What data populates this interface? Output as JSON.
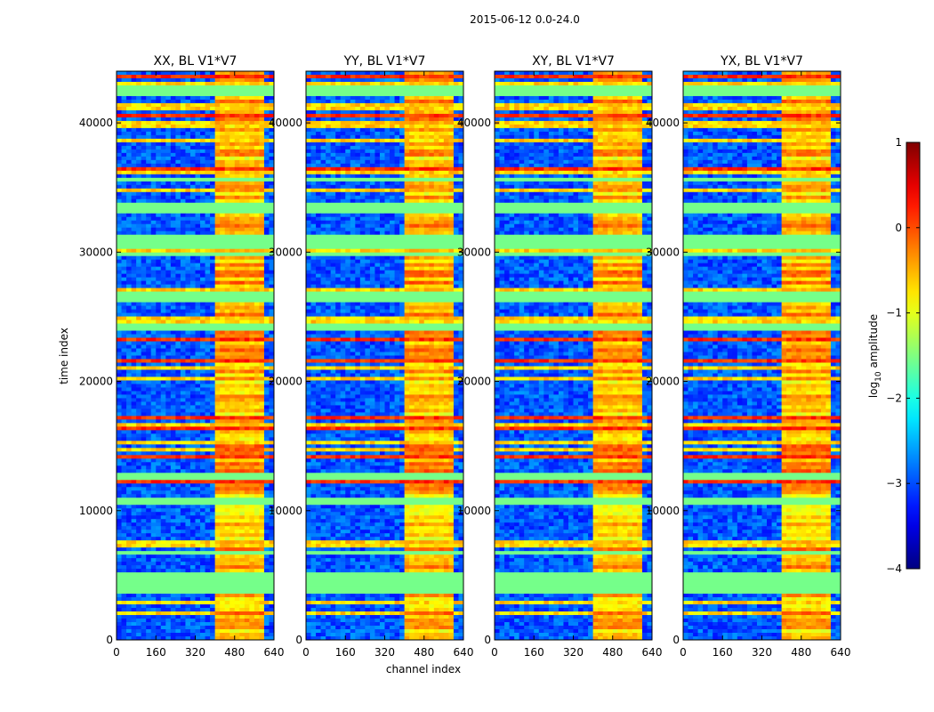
{
  "chart_data": {
    "type": "heatmap",
    "suptitle": "2015-06-12 0.0-24.0",
    "xlabel": "channel index",
    "ylabel": "time index",
    "xlim": [
      0,
      640
    ],
    "ylim": [
      0,
      44000
    ],
    "xticks": [
      "0",
      "160",
      "320",
      "480",
      "640"
    ],
    "yticks": [
      "0",
      "10000",
      "20000",
      "30000",
      "40000"
    ],
    "colormap": "jet",
    "panels": [
      {
        "title": "XX, BL V1*V7",
        "rfi_start": 400
      },
      {
        "title": "YY, BL V1*V7",
        "rfi_start": 400
      },
      {
        "title": "XY, BL V1*V7",
        "rfi_start": 400
      },
      {
        "title": "YX, BL V1*V7",
        "rfi_start": 400
      }
    ],
    "bands_channels": [
      {
        "start": 400,
        "end": 440
      },
      {
        "start": 450,
        "end": 490
      },
      {
        "start": 500,
        "end": 540
      },
      {
        "start": 550,
        "end": 600
      }
    ],
    "flagged_time_bands": [
      {
        "start": 3600,
        "end": 5200
      },
      {
        "start": 6500,
        "end": 7000
      },
      {
        "start": 10500,
        "end": 10900
      },
      {
        "start": 12500,
        "end": 13000
      },
      {
        "start": 23800,
        "end": 24500
      },
      {
        "start": 26200,
        "end": 27000
      },
      {
        "start": 29600,
        "end": 30100
      },
      {
        "start": 30200,
        "end": 31300
      },
      {
        "start": 33000,
        "end": 33700
      },
      {
        "start": 35400,
        "end": 35700
      },
      {
        "start": 42200,
        "end": 43000
      }
    ],
    "colorbar": {
      "label": "log10 amplitude",
      "label_main": "log",
      "label_sub": "10",
      "label_tail": " amplitude",
      "min": -4,
      "max": 1,
      "ticks": [
        -4,
        -3,
        -2,
        -1,
        0,
        1
      ],
      "tick_labels": [
        "−4",
        "−3",
        "−2",
        "−1",
        "0",
        "1"
      ]
    }
  }
}
